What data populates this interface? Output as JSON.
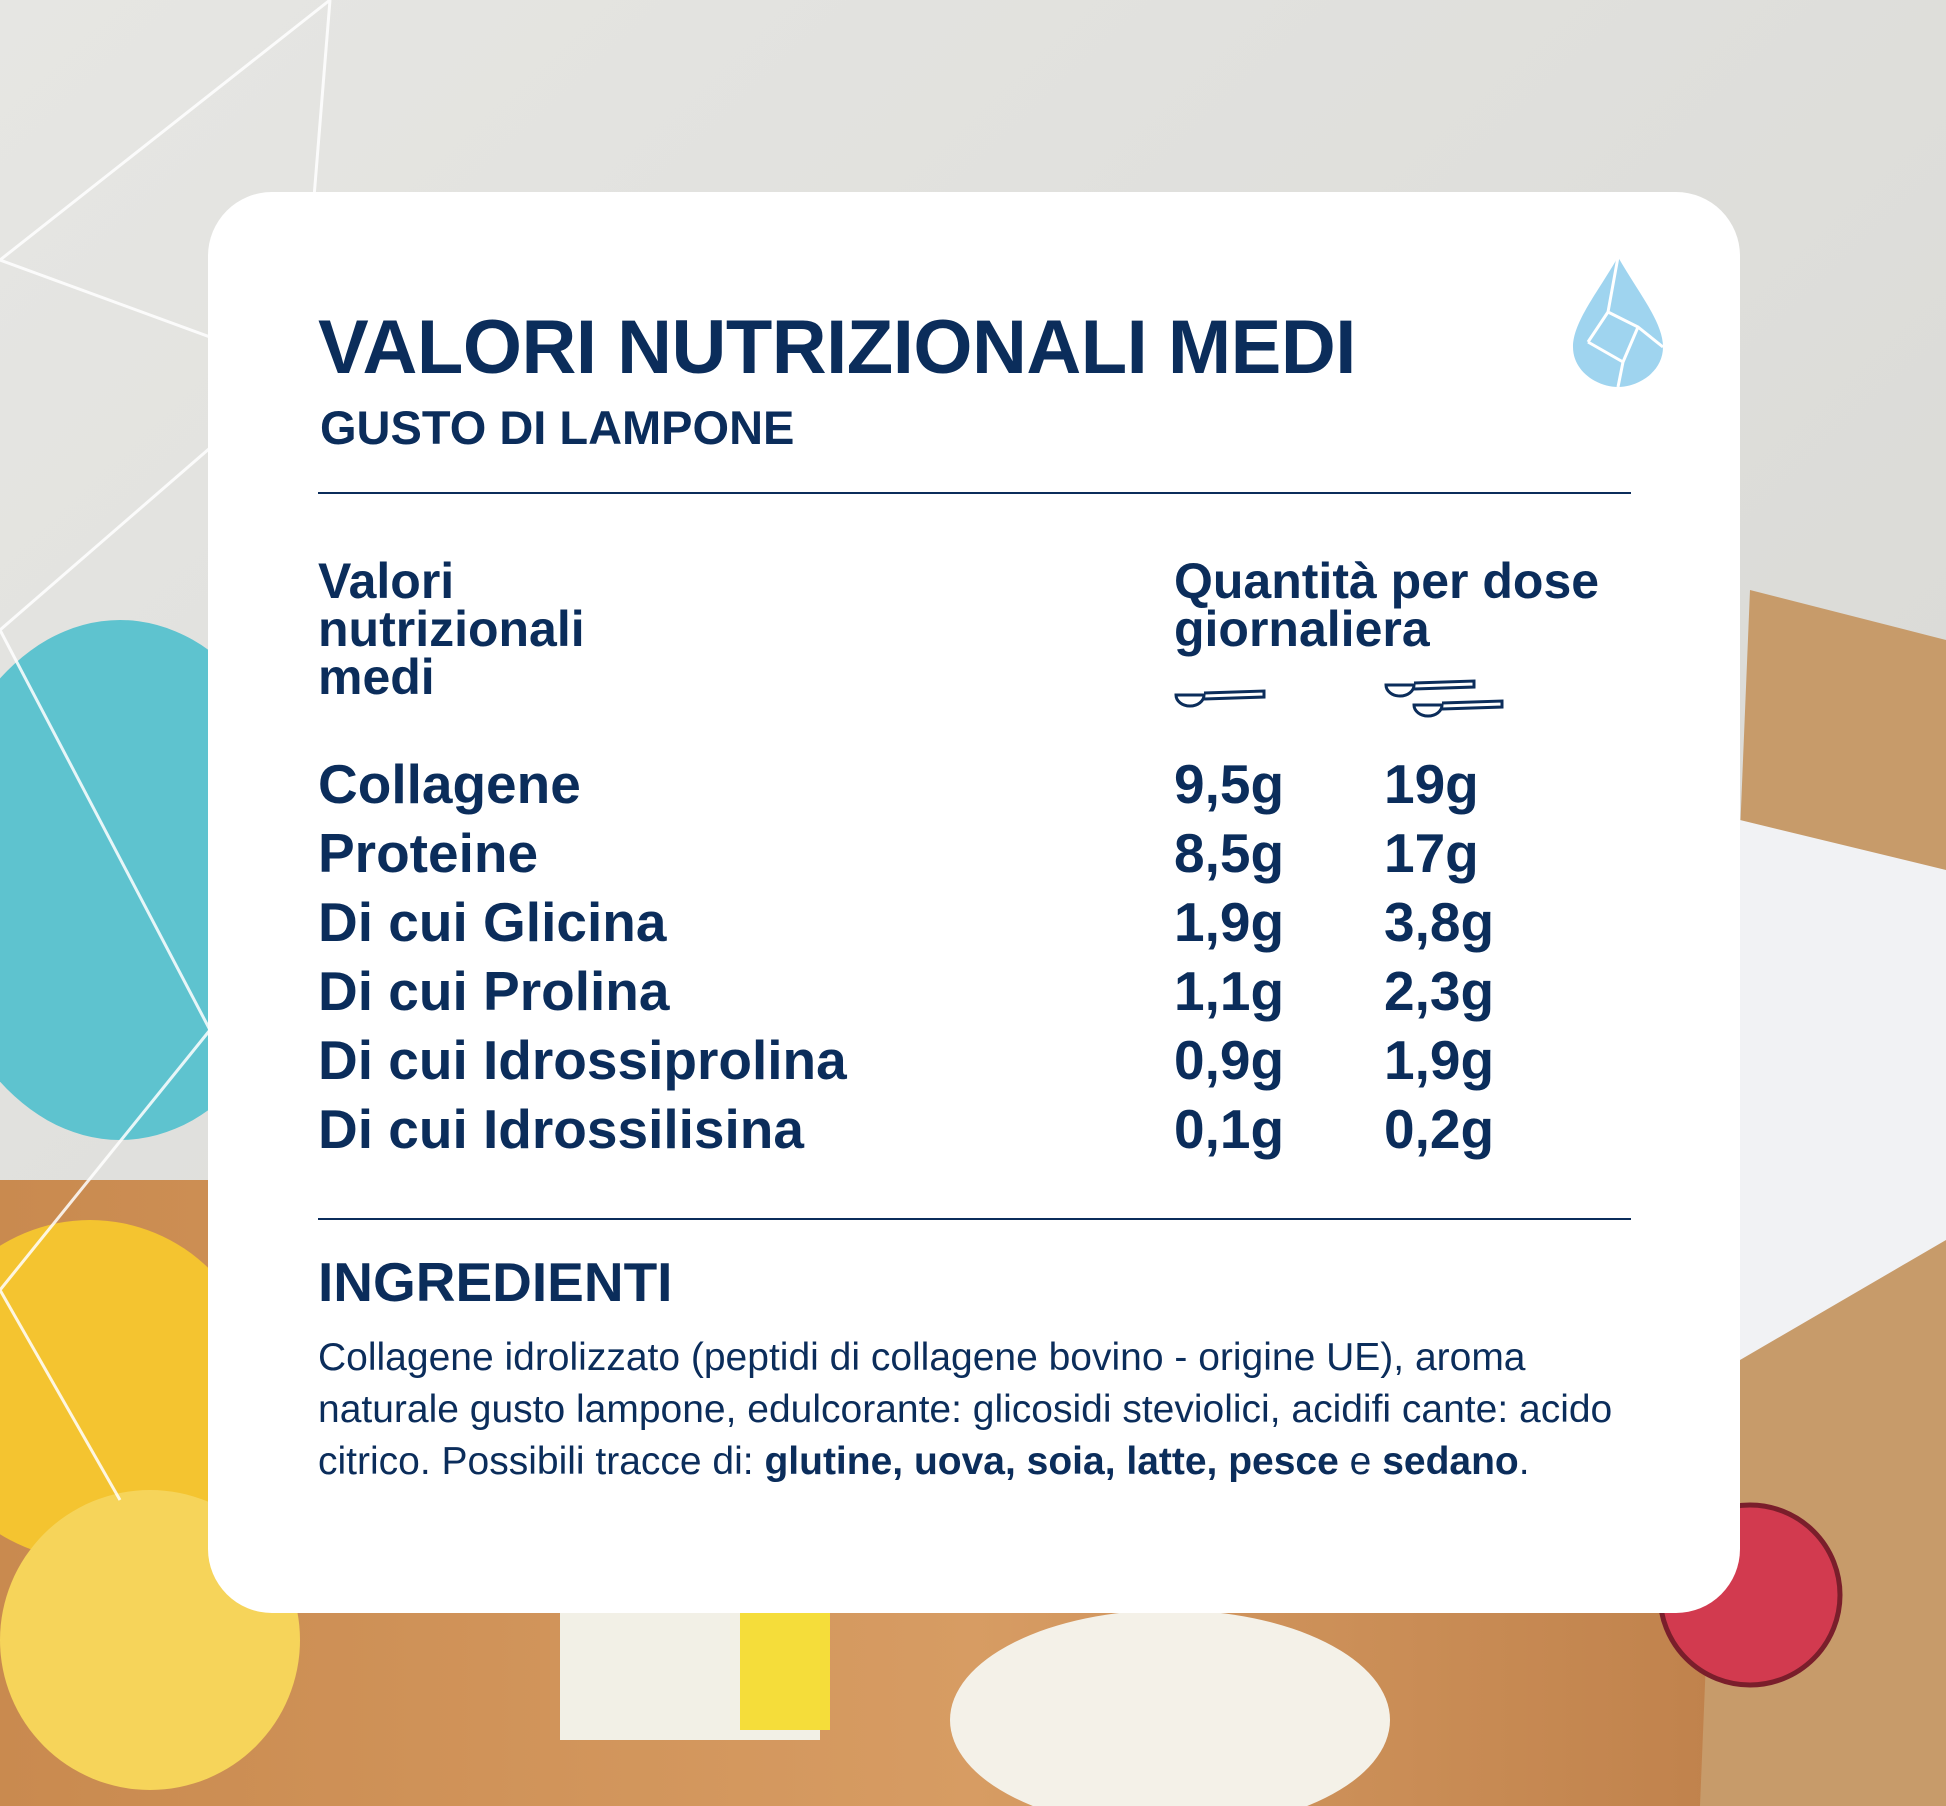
{
  "header": {
    "title": "VALORI NUTRIZIONALI MEDI",
    "subtitle": "GUSTO DI LAMPONE"
  },
  "table": {
    "columns": [
      "Valori nutrizionali medi",
      "Quantità per dose giornaliera"
    ],
    "rows": [
      [
        "Collagene",
        "9,5g",
        "19g"
      ],
      [
        "Proteine",
        "8,5g",
        "17g"
      ],
      [
        "Di cui Glicina",
        "1,9g",
        "3,8g"
      ],
      [
        "Di cui Prolina",
        "1,1g",
        "2,3g"
      ],
      [
        "Di cui Idrossiprolina",
        "0,9g",
        "1,9g"
      ],
      [
        "Di cui Idrossilisina",
        "0,1g",
        "0,2g"
      ]
    ]
  },
  "ingredients": {
    "title": "INGREDIENTI",
    "text": [
      {
        "text": "Collagene idrolizzato (peptidi di collagene bovino - origine UE), aroma naturale gusto lampone, edulcorante: glicosidi steviolici, acidifi cante: acido citrico. Possibili tracce di: ",
        "bold": false
      },
      {
        "text": "glutine, uova, soia, latte, pesce",
        "bold": true
      },
      {
        "text": " e ",
        "bold": false
      },
      {
        "text": "sedano",
        "bold": true
      },
      {
        "text": ".",
        "bold": false
      }
    ]
  }
}
